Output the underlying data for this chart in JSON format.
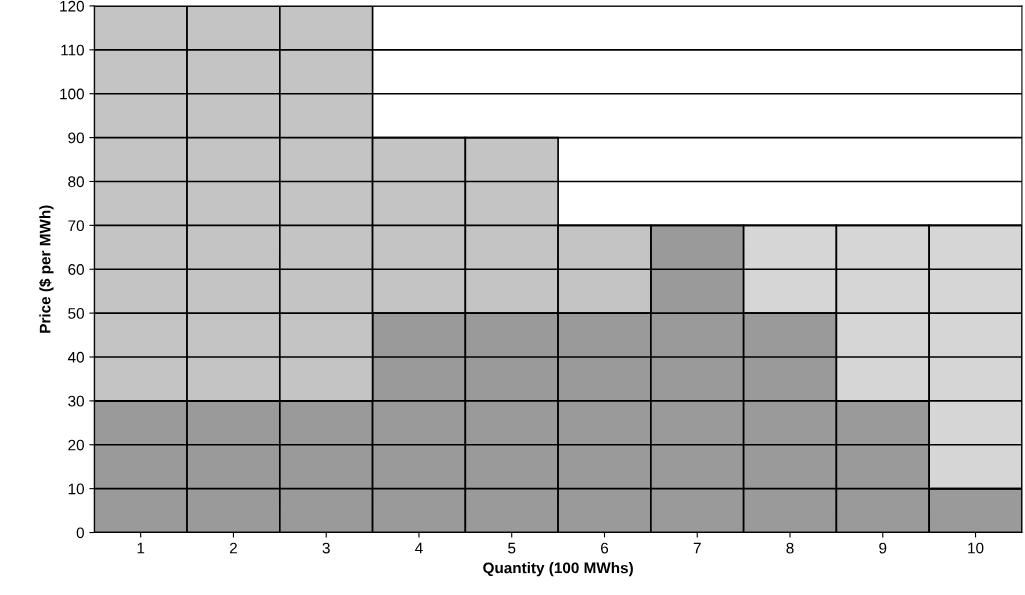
{
  "chart_data": {
    "type": "bar",
    "stacked": true,
    "xlabel": "Quantity (100 MWhs)",
    "ylabel": "Price ($ per MWh)",
    "categories": [
      "1",
      "2",
      "3",
      "4",
      "5",
      "6",
      "7",
      "8",
      "9",
      "10"
    ],
    "series": [
      {
        "color": "#9a9a9a",
        "values": [
          30,
          30,
          30,
          50,
          50,
          50,
          70,
          50,
          30,
          10
        ]
      },
      {
        "color": "#c4c4c4",
        "colors": [
          "#c4c4c4",
          "#c4c4c4",
          "#c4c4c4",
          "#c4c4c4",
          "#c4c4c4",
          "#c4c4c4",
          "#c4c4c4",
          "#d6d6d6",
          "#d6d6d6",
          "#d6d6d6"
        ],
        "values": [
          90,
          90,
          90,
          40,
          40,
          20,
          null,
          20,
          40,
          60
        ]
      }
    ],
    "ylim": [
      0,
      120
    ],
    "yticks": [
      0,
      10,
      20,
      30,
      40,
      50,
      60,
      70,
      80,
      90,
      100,
      110,
      120
    ],
    "grid": "y",
    "legend": false
  }
}
